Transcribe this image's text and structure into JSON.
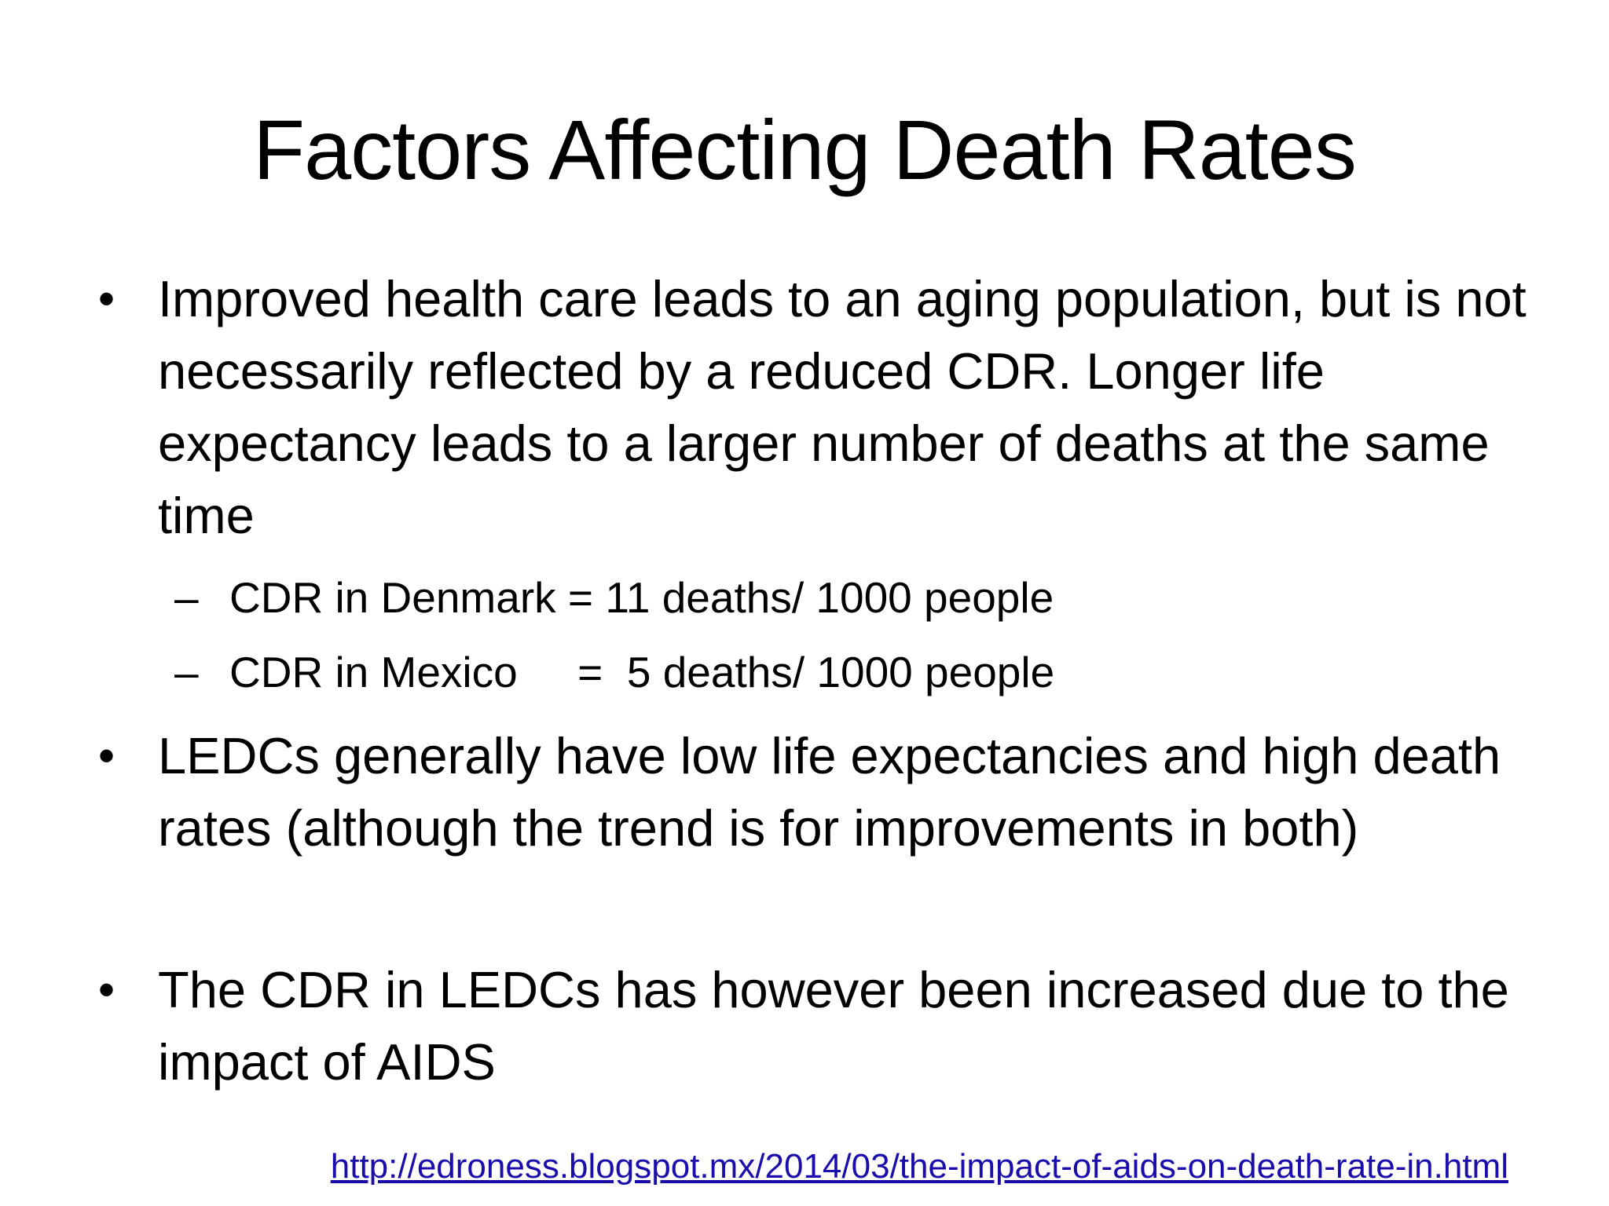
{
  "slide": {
    "title": "Factors Affecting Death Rates",
    "bullets": [
      {
        "marker": "•",
        "text": "Improved health care leads to an aging population, but is not necessarily reflected by a reduced CDR. Longer life expectancy leads to a larger number of deaths at the same time"
      },
      {
        "marker": "•",
        "text": "LEDCs generally have low life expectancies and high death rates (although the trend is for improvements in both)"
      },
      {
        "marker": "•",
        "text": "The CDR in LEDCs has however been increased due to the impact of AIDS"
      }
    ],
    "sub_bullets": [
      {
        "marker": "–",
        "text": "CDR in Denmark = 11 deaths/ 1000 people"
      },
      {
        "marker": "–",
        "text": "CDR in Mexico     =  5 deaths/ 1000 people"
      }
    ],
    "source_link": "http://edroness.blogspot.mx/2014/03/the-impact-of-aids-on-death-rate-in.html",
    "colors": {
      "background": "#ffffff",
      "text": "#000000",
      "link": "#1a0dab"
    }
  }
}
